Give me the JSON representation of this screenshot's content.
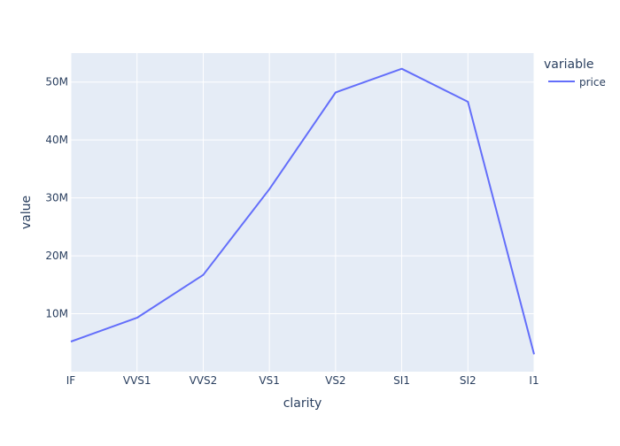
{
  "chart_data": {
    "type": "line",
    "categories": [
      "IF",
      "VVS1",
      "VVS2",
      "VS1",
      "VS2",
      "SI1",
      "SI2",
      "I1"
    ],
    "series": [
      {
        "name": "price",
        "values": [
          5200000,
          9300000,
          16700000,
          31500000,
          48200000,
          52300000,
          46600000,
          3000000
        ],
        "color": "#636efa"
      }
    ],
    "xlabel": "clarity",
    "ylabel": "value",
    "ylim": [
      0,
      55000000
    ],
    "yticks": [
      10000000,
      20000000,
      30000000,
      40000000,
      50000000
    ],
    "ytick_labels": [
      "10M",
      "20M",
      "30M",
      "40M",
      "50M"
    ],
    "legend": {
      "title": "variable",
      "placement": "top-right"
    },
    "grid": true,
    "colors": {
      "plot_background": "#e5ecf6",
      "grid": "#ffffff",
      "text": "#2a3f5f"
    }
  }
}
